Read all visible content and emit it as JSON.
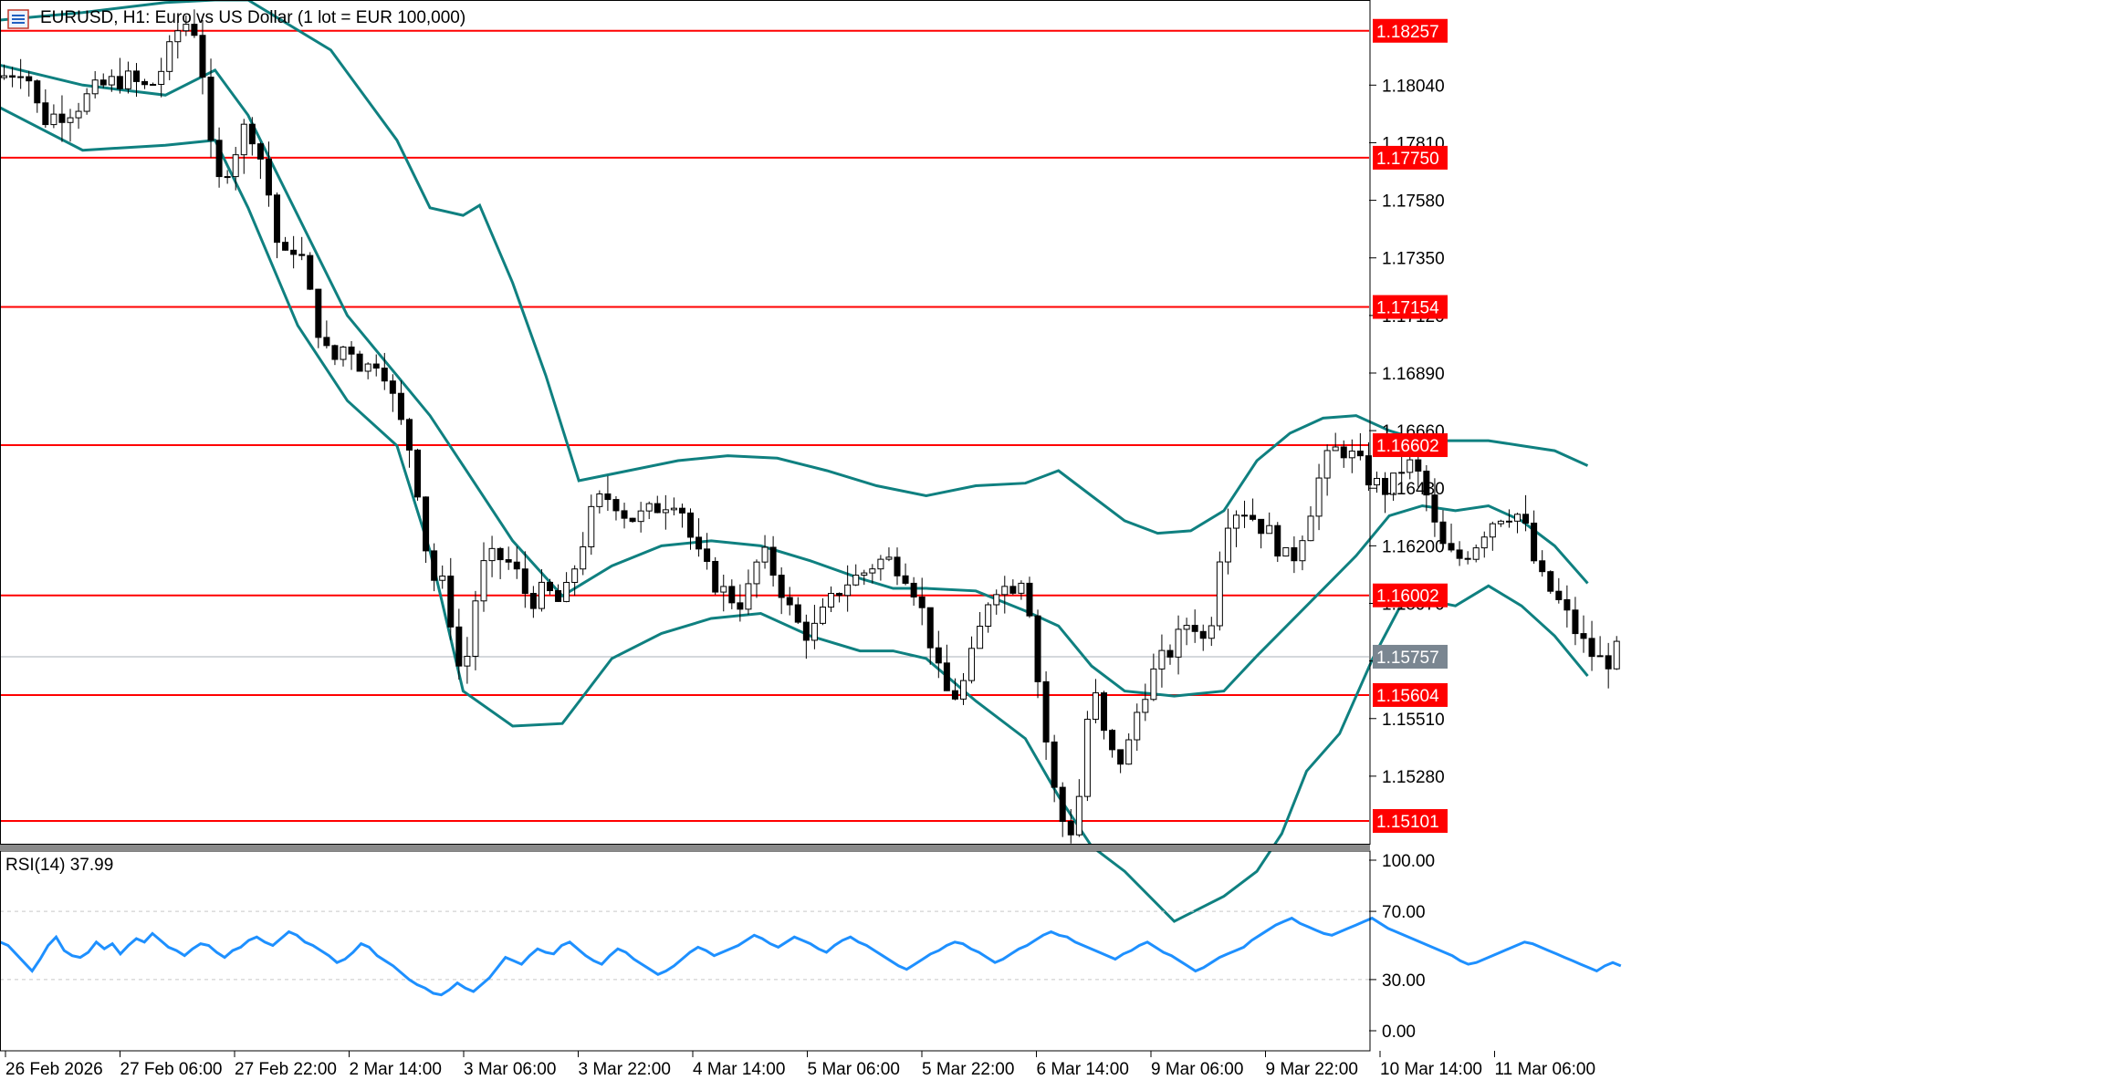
{
  "window": {
    "symbol_icon": "candlestick-chart-icon",
    "title": "EURUSD, H1:  Euro vs US Dollar (1 lot = EUR 100,000)"
  },
  "colors": {
    "background": "#ffffff",
    "bollinger": "#0f8080",
    "level_line": "#ff0000",
    "rsi_line": "#1e90ff",
    "grid": "#c8c8c8",
    "current_price_tag": "#7a8691"
  },
  "chart_data": [
    {
      "type": "candlestick",
      "symbol": "EURUSD",
      "timeframe": "H1",
      "indicator": "Bollinger Bands",
      "ylim": [
        1.1501,
        1.1838
      ],
      "y_ticks": [
        "1.18040",
        "1.17810",
        "1.17580",
        "1.17350",
        "1.17120",
        "1.16890",
        "1.16660",
        "1.16430",
        "1.16200",
        "1.15970",
        "1.15740",
        "1.15510",
        "1.15280"
      ],
      "x_ticks": [
        "26 Feb 2026",
        "27 Feb 06:00",
        "27 Feb 22:00",
        "2 Mar 14:00",
        "3 Mar 06:00",
        "3 Mar 22:00",
        "4 Mar 14:00",
        "5 Mar 06:00",
        "5 Mar 22:00",
        "6 Mar 14:00",
        "9 Mar 06:00",
        "9 Mar 22:00",
        "10 Mar 14:00",
        "11 Mar 06:00"
      ],
      "horizontal_levels": [
        "1.18257",
        "1.17750",
        "1.17154",
        "1.16602",
        "1.16002",
        "1.15604",
        "1.15101"
      ],
      "current_price": "1.15757",
      "close_path": [
        [
          0,
          1.1807
        ],
        [
          6,
          1.1812
        ],
        [
          10,
          1.179
        ],
        [
          18,
          1.1795
        ],
        [
          24,
          1.1803
        ],
        [
          30,
          1.1807
        ],
        [
          36,
          1.1802
        ],
        [
          40,
          1.1813
        ],
        [
          44,
          1.183
        ],
        [
          48,
          1.1825
        ],
        [
          52,
          1.1762
        ],
        [
          56,
          1.1775
        ],
        [
          60,
          1.179
        ],
        [
          64,
          1.177
        ],
        [
          68,
          1.1732
        ],
        [
          72,
          1.1742
        ],
        [
          76,
          1.1712
        ],
        [
          80,
          1.1692
        ],
        [
          84,
          1.1702
        ],
        [
          88,
          1.169
        ],
        [
          92,
          1.1696
        ],
        [
          96,
          1.1673
        ],
        [
          100,
          1.1655
        ],
        [
          104,
          1.1608
        ],
        [
          108,
          1.1603
        ],
        [
          110,
          1.1579
        ],
        [
          112,
          1.1565
        ],
        [
          116,
          1.161
        ],
        [
          120,
          1.1616
        ],
        [
          124,
          1.1612
        ],
        [
          128,
          1.1598
        ],
        [
          132,
          1.1602
        ],
        [
          136,
          1.1596
        ],
        [
          140,
          1.1617
        ],
        [
          144,
          1.1637
        ],
        [
          148,
          1.164
        ],
        [
          152,
          1.1631
        ],
        [
          156,
          1.1632
        ],
        [
          160,
          1.1637
        ],
        [
          164,
          1.164
        ],
        [
          168,
          1.1618
        ],
        [
          172,
          1.1607
        ],
        [
          176,
          1.16
        ],
        [
          180,
          1.1597
        ],
        [
          184,
          1.1618
        ],
        [
          188,
          1.1607
        ],
        [
          192,
          1.159
        ],
        [
          196,
          1.1584
        ],
        [
          200,
          1.1595
        ],
        [
          204,
          1.1605
        ],
        [
          208,
          1.1608
        ],
        [
          212,
          1.1614
        ],
        [
          216,
          1.1614
        ],
        [
          220,
          1.1608
        ],
        [
          224,
          1.1589
        ],
        [
          228,
          1.1562
        ],
        [
          232,
          1.156
        ],
        [
          236,
          1.158
        ],
        [
          240,
          1.1605
        ],
        [
          244,
          1.1603
        ],
        [
          248,
          1.161
        ],
        [
          252,
          1.1552
        ],
        [
          256,
          1.1512
        ],
        [
          260,
          1.1505
        ],
        [
          264,
          1.1566
        ],
        [
          268,
          1.1537
        ],
        [
          272,
          1.1534
        ],
        [
          276,
          1.156
        ],
        [
          280,
          1.1572
        ],
        [
          284,
          1.158
        ],
        [
          288,
          1.1592
        ],
        [
          292,
          1.1579
        ],
        [
          296,
          1.163
        ],
        [
          300,
          1.1636
        ],
        [
          304,
          1.163
        ],
        [
          308,
          1.1623
        ],
        [
          312,
          1.1612
        ],
        [
          316,
          1.163
        ],
        [
          320,
          1.1652
        ],
        [
          324,
          1.166
        ],
        [
          328,
          1.1654
        ],
        [
          332,
          1.1645
        ],
        [
          336,
          1.1642
        ],
        [
          340,
          1.1654
        ],
        [
          344,
          1.1646
        ],
        [
          348,
          1.1621
        ],
        [
          352,
          1.1614
        ],
        [
          356,
          1.1619
        ],
        [
          360,
          1.1629
        ],
        [
          364,
          1.1634
        ],
        [
          368,
          1.1632
        ],
        [
          372,
          1.1608
        ],
        [
          376,
          1.16
        ],
        [
          380,
          1.1589
        ],
        [
          384,
          1.1578
        ],
        [
          388,
          1.1573
        ],
        [
          392,
          1.1579
        ]
      ],
      "bollinger_upper": [
        [
          0,
          1.183
        ],
        [
          20,
          1.1833
        ],
        [
          40,
          1.1837
        ],
        [
          52,
          1.1838
        ],
        [
          60,
          1.1838
        ],
        [
          80,
          1.1818
        ],
        [
          96,
          1.1782
        ],
        [
          104,
          1.1755
        ],
        [
          112,
          1.1752
        ],
        [
          116,
          1.1756
        ],
        [
          124,
          1.1725
        ],
        [
          132,
          1.1688
        ],
        [
          140,
          1.1646
        ],
        [
          152,
          1.165
        ],
        [
          164,
          1.1654
        ],
        [
          176,
          1.1656
        ],
        [
          188,
          1.1655
        ],
        [
          200,
          1.165
        ],
        [
          212,
          1.1644
        ],
        [
          224,
          1.164
        ],
        [
          236,
          1.1644
        ],
        [
          248,
          1.1645
        ],
        [
          256,
          1.165
        ],
        [
          264,
          1.164
        ],
        [
          272,
          1.163
        ],
        [
          280,
          1.1625
        ],
        [
          288,
          1.1626
        ],
        [
          296,
          1.1634
        ],
        [
          304,
          1.1654
        ],
        [
          312,
          1.1665
        ],
        [
          320,
          1.1671
        ],
        [
          328,
          1.1672
        ],
        [
          336,
          1.1666
        ],
        [
          344,
          1.1662
        ],
        [
          352,
          1.1662
        ],
        [
          360,
          1.1662
        ],
        [
          368,
          1.166
        ],
        [
          376,
          1.1658
        ],
        [
          384,
          1.1652
        ]
      ],
      "bollinger_middle": [
        [
          0,
          1.1812
        ],
        [
          20,
          1.1804
        ],
        [
          40,
          1.18
        ],
        [
          52,
          1.181
        ],
        [
          60,
          1.1792
        ],
        [
          72,
          1.1752
        ],
        [
          84,
          1.1712
        ],
        [
          96,
          1.1688
        ],
        [
          104,
          1.1672
        ],
        [
          112,
          1.1652
        ],
        [
          124,
          1.1622
        ],
        [
          136,
          1.16
        ],
        [
          148,
          1.1612
        ],
        [
          160,
          1.162
        ],
        [
          172,
          1.1622
        ],
        [
          184,
          1.162
        ],
        [
          196,
          1.1614
        ],
        [
          208,
          1.1607
        ],
        [
          216,
          1.1603
        ],
        [
          224,
          1.1603
        ],
        [
          236,
          1.1602
        ],
        [
          248,
          1.1594
        ],
        [
          256,
          1.1588
        ],
        [
          264,
          1.1572
        ],
        [
          272,
          1.1562
        ],
        [
          284,
          1.156
        ],
        [
          296,
          1.1562
        ],
        [
          304,
          1.1576
        ],
        [
          316,
          1.1596
        ],
        [
          328,
          1.1616
        ],
        [
          336,
          1.1632
        ],
        [
          344,
          1.1636
        ],
        [
          352,
          1.1634
        ],
        [
          360,
          1.1636
        ],
        [
          368,
          1.163
        ],
        [
          376,
          1.162
        ],
        [
          384,
          1.1605
        ]
      ],
      "bollinger_lower": [
        [
          0,
          1.1795
        ],
        [
          20,
          1.1778
        ],
        [
          40,
          1.178
        ],
        [
          52,
          1.1782
        ],
        [
          60,
          1.1755
        ],
        [
          72,
          1.1708
        ],
        [
          84,
          1.1678
        ],
        [
          96,
          1.166
        ],
        [
          104,
          1.1618
        ],
        [
          112,
          1.1562
        ],
        [
          124,
          1.1548
        ],
        [
          136,
          1.1549
        ],
        [
          148,
          1.1575
        ],
        [
          160,
          1.1585
        ],
        [
          172,
          1.1591
        ],
        [
          184,
          1.1593
        ],
        [
          196,
          1.1584
        ],
        [
          208,
          1.1578
        ],
        [
          216,
          1.1578
        ],
        [
          224,
          1.1575
        ],
        [
          236,
          1.1558
        ],
        [
          248,
          1.1543
        ],
        [
          256,
          1.152
        ],
        [
          264,
          1.15
        ],
        [
          272,
          1.149
        ],
        [
          284,
          1.147
        ],
        [
          296,
          1.148
        ],
        [
          304,
          1.149
        ],
        [
          310,
          1.1505
        ],
        [
          316,
          1.153
        ],
        [
          324,
          1.1545
        ],
        [
          332,
          1.1575
        ],
        [
          340,
          1.16
        ],
        [
          352,
          1.1596
        ],
        [
          360,
          1.1604
        ],
        [
          368,
          1.1596
        ],
        [
          376,
          1.1584
        ],
        [
          384,
          1.1568
        ]
      ]
    },
    {
      "type": "line",
      "indicator": "RSI(14)",
      "title": "RSI(14) 37.99",
      "ylim": [
        0,
        100
      ],
      "y_ticks": [
        "100.00",
        "70.00",
        "30.00",
        "0.00"
      ],
      "levels": [
        70,
        30
      ],
      "x_range": [
        0,
        392
      ],
      "series": [
        {
          "name": "RSI(14)",
          "values": [
            52,
            50,
            45,
            40,
            35,
            42,
            50,
            55,
            47,
            44,
            43,
            46,
            52,
            48,
            51,
            45,
            50,
            54,
            52,
            57,
            53,
            49,
            47,
            44,
            48,
            51,
            50,
            46,
            43,
            47,
            49,
            53,
            55,
            52,
            50,
            54,
            58,
            56,
            52,
            50,
            47,
            44,
            40,
            42,
            46,
            51,
            49,
            44,
            41,
            38,
            34,
            30,
            27,
            25,
            22,
            21,
            24,
            28,
            25,
            23,
            27,
            31,
            37,
            43,
            41,
            39,
            44,
            48,
            46,
            45,
            50,
            52,
            48,
            44,
            41,
            39,
            44,
            48,
            46,
            42,
            39,
            36,
            33,
            35,
            38,
            42,
            46,
            49,
            47,
            44,
            46,
            48,
            50,
            53,
            56,
            54,
            51,
            49,
            52,
            55,
            53,
            51,
            48,
            46,
            50,
            53,
            55,
            52,
            50,
            47,
            44,
            41,
            38,
            36,
            39,
            42,
            45,
            47,
            50,
            52,
            51,
            48,
            46,
            43,
            40,
            42,
            45,
            48,
            50,
            53,
            56,
            58,
            56,
            55,
            52,
            50,
            48,
            46,
            44,
            42,
            45,
            47,
            50,
            52,
            49,
            46,
            44,
            41,
            38,
            35,
            37,
            40,
            43,
            45,
            47,
            49,
            53,
            56,
            59,
            62,
            64,
            66,
            63,
            61,
            59,
            57,
            56,
            58,
            60,
            62,
            64,
            66,
            63,
            60,
            58,
            56,
            54,
            52,
            50,
            48,
            46,
            44,
            41,
            39,
            40,
            42,
            44,
            46,
            48,
            50,
            52,
            51,
            49,
            47,
            45,
            43,
            41,
            39,
            37,
            35,
            38,
            40,
            38
          ]
        }
      ]
    }
  ]
}
